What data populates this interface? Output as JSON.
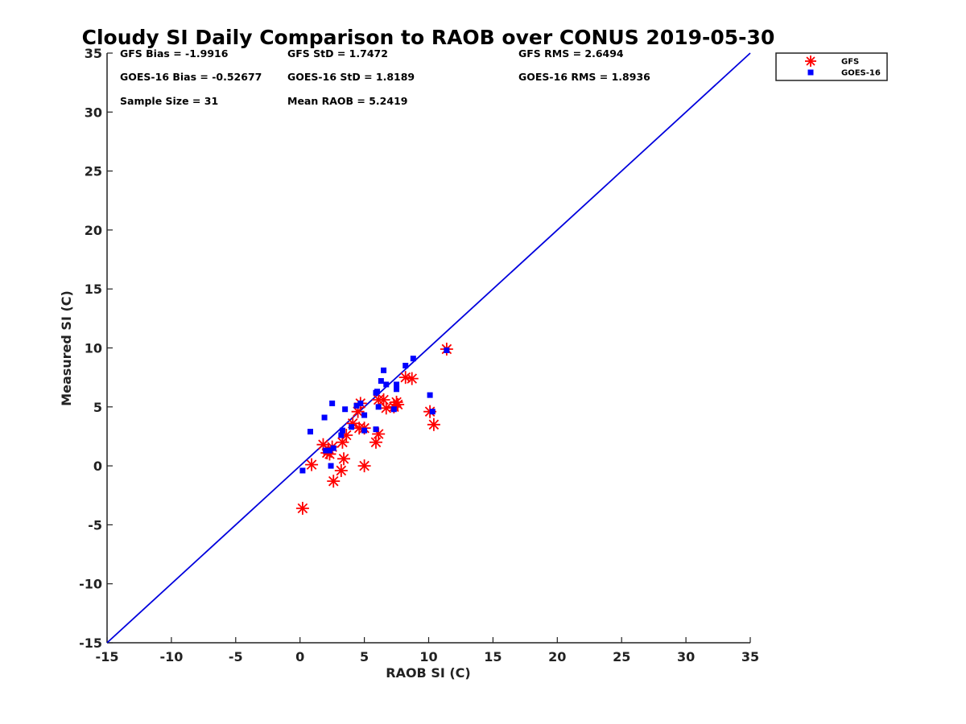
{
  "chart_data": {
    "type": "scatter",
    "title": "Cloudy SI Daily Comparison to RAOB over CONUS 2019-05-30",
    "xlabel": "RAOB SI (C)",
    "ylabel": "Measured SI (C)",
    "xlim": [
      -15,
      35
    ],
    "ylim": [
      -15,
      35
    ],
    "xticks": [
      -15,
      -10,
      -5,
      0,
      5,
      10,
      15,
      20,
      25,
      30,
      35
    ],
    "yticks": [
      -15,
      -10,
      -5,
      0,
      5,
      10,
      15,
      20,
      25,
      30,
      35
    ],
    "grid": false,
    "legend_position": "outside top-right",
    "reference_line": {
      "from": [
        -15,
        -15
      ],
      "to": [
        35,
        35
      ],
      "color": "#0000dd"
    },
    "stats": [
      {
        "key": "gfs_bias",
        "text": "GFS Bias = -1.9916"
      },
      {
        "key": "gfs_std",
        "text": "GFS StD = 1.7472"
      },
      {
        "key": "gfs_rms",
        "text": "GFS RMS = 2.6494"
      },
      {
        "key": "goes_bias",
        "text": "GOES-16 Bias = -0.52677"
      },
      {
        "key": "goes_std",
        "text": "GOES-16 StD = 1.8189"
      },
      {
        "key": "goes_rms",
        "text": "GOES-16 RMS = 1.8936"
      },
      {
        "key": "sample_size",
        "text": "Sample Size = 31"
      },
      {
        "key": "mean_raob",
        "text": "Mean RAOB = 5.2419"
      }
    ],
    "series": [
      {
        "name": "GFS",
        "marker": "asterisk",
        "color": "#ff0000",
        "points": [
          [
            0.2,
            -3.6
          ],
          [
            0.9,
            0.1
          ],
          [
            1.8,
            1.8
          ],
          [
            2.1,
            1.1
          ],
          [
            2.3,
            1.0
          ],
          [
            2.5,
            1.6
          ],
          [
            2.6,
            -1.3
          ],
          [
            3.2,
            -0.4
          ],
          [
            3.4,
            0.6
          ],
          [
            3.3,
            2.0
          ],
          [
            3.6,
            2.6
          ],
          [
            4.1,
            3.6
          ],
          [
            4.5,
            4.6
          ],
          [
            4.7,
            5.3
          ],
          [
            5.0,
            3.2
          ],
          [
            5.0,
            0.0
          ],
          [
            5.9,
            2.0
          ],
          [
            6.1,
            2.7
          ],
          [
            6.1,
            5.6
          ],
          [
            6.5,
            5.6
          ],
          [
            6.7,
            4.9
          ],
          [
            7.3,
            5.0
          ],
          [
            7.5,
            5.4
          ],
          [
            7.6,
            5.2
          ],
          [
            8.2,
            7.5
          ],
          [
            8.7,
            7.4
          ],
          [
            10.1,
            4.6
          ],
          [
            10.4,
            3.5
          ],
          [
            11.4,
            9.9
          ],
          [
            4.6,
            3.2
          ],
          [
            2.2,
            1.4
          ]
        ]
      },
      {
        "name": "GOES-16",
        "marker": "square",
        "color": "#0000ff",
        "points": [
          [
            0.2,
            -0.4
          ],
          [
            0.8,
            2.9
          ],
          [
            1.9,
            4.1
          ],
          [
            2.0,
            1.3
          ],
          [
            2.3,
            1.3
          ],
          [
            2.4,
            0.0
          ],
          [
            2.5,
            5.3
          ],
          [
            2.6,
            1.5
          ],
          [
            3.2,
            2.6
          ],
          [
            3.3,
            3.0
          ],
          [
            3.5,
            4.8
          ],
          [
            4.0,
            3.3
          ],
          [
            4.4,
            5.1
          ],
          [
            4.7,
            5.3
          ],
          [
            5.0,
            4.3
          ],
          [
            5.0,
            3.0
          ],
          [
            5.9,
            6.2
          ],
          [
            5.9,
            3.1
          ],
          [
            6.0,
            6.3
          ],
          [
            6.1,
            5.0
          ],
          [
            6.3,
            7.2
          ],
          [
            6.5,
            8.1
          ],
          [
            6.7,
            6.9
          ],
          [
            7.3,
            4.8
          ],
          [
            7.5,
            6.9
          ],
          [
            7.5,
            6.5
          ],
          [
            8.2,
            8.5
          ],
          [
            8.8,
            9.1
          ],
          [
            10.1,
            6.0
          ],
          [
            10.3,
            4.6
          ],
          [
            11.4,
            9.8
          ]
        ]
      }
    ]
  }
}
